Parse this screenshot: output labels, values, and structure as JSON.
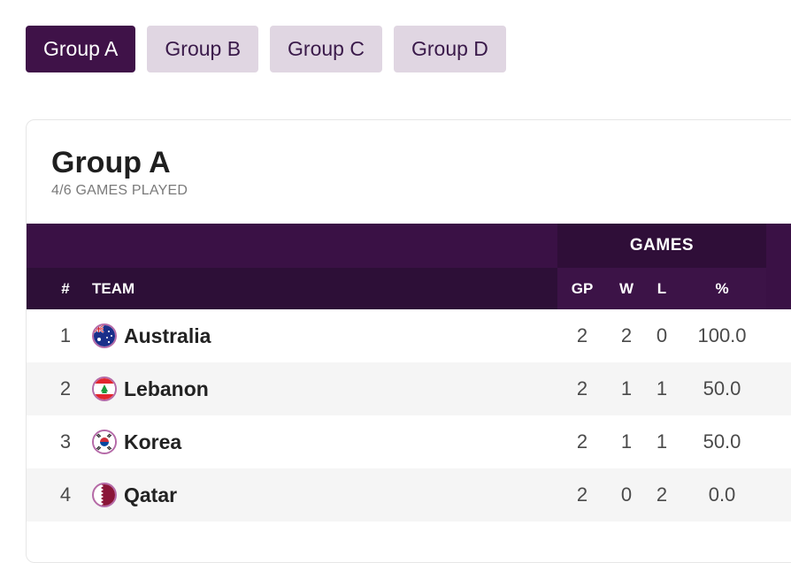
{
  "tabs": [
    {
      "label": "Group A",
      "active": true
    },
    {
      "label": "Group B",
      "active": false
    },
    {
      "label": "Group C",
      "active": false
    },
    {
      "label": "Group D",
      "active": false
    }
  ],
  "card": {
    "title": "Group A",
    "subtitle": "4/6 GAMES PLAYED"
  },
  "table": {
    "group_header": "GAMES",
    "columns": {
      "rank": "#",
      "team": "TEAM",
      "gp": "GP",
      "w": "W",
      "l": "L",
      "pct": "%"
    },
    "rows": [
      {
        "rank": "1",
        "team": "Australia",
        "flag": "australia-flag-icon",
        "gp": "2",
        "w": "2",
        "l": "0",
        "pct": "100.0"
      },
      {
        "rank": "2",
        "team": "Lebanon",
        "flag": "lebanon-flag-icon",
        "gp": "2",
        "w": "1",
        "l": "1",
        "pct": "50.0"
      },
      {
        "rank": "3",
        "team": "Korea",
        "flag": "korea-flag-icon",
        "gp": "2",
        "w": "1",
        "l": "1",
        "pct": "50.0"
      },
      {
        "rank": "4",
        "team": "Qatar",
        "flag": "qatar-flag-icon",
        "gp": "2",
        "w": "0",
        "l": "2",
        "pct": "0.0"
      }
    ]
  },
  "colors": {
    "accent": "#3f1248",
    "tab_inactive": "#e0d6e2",
    "header_dark": "#2d0f37"
  }
}
